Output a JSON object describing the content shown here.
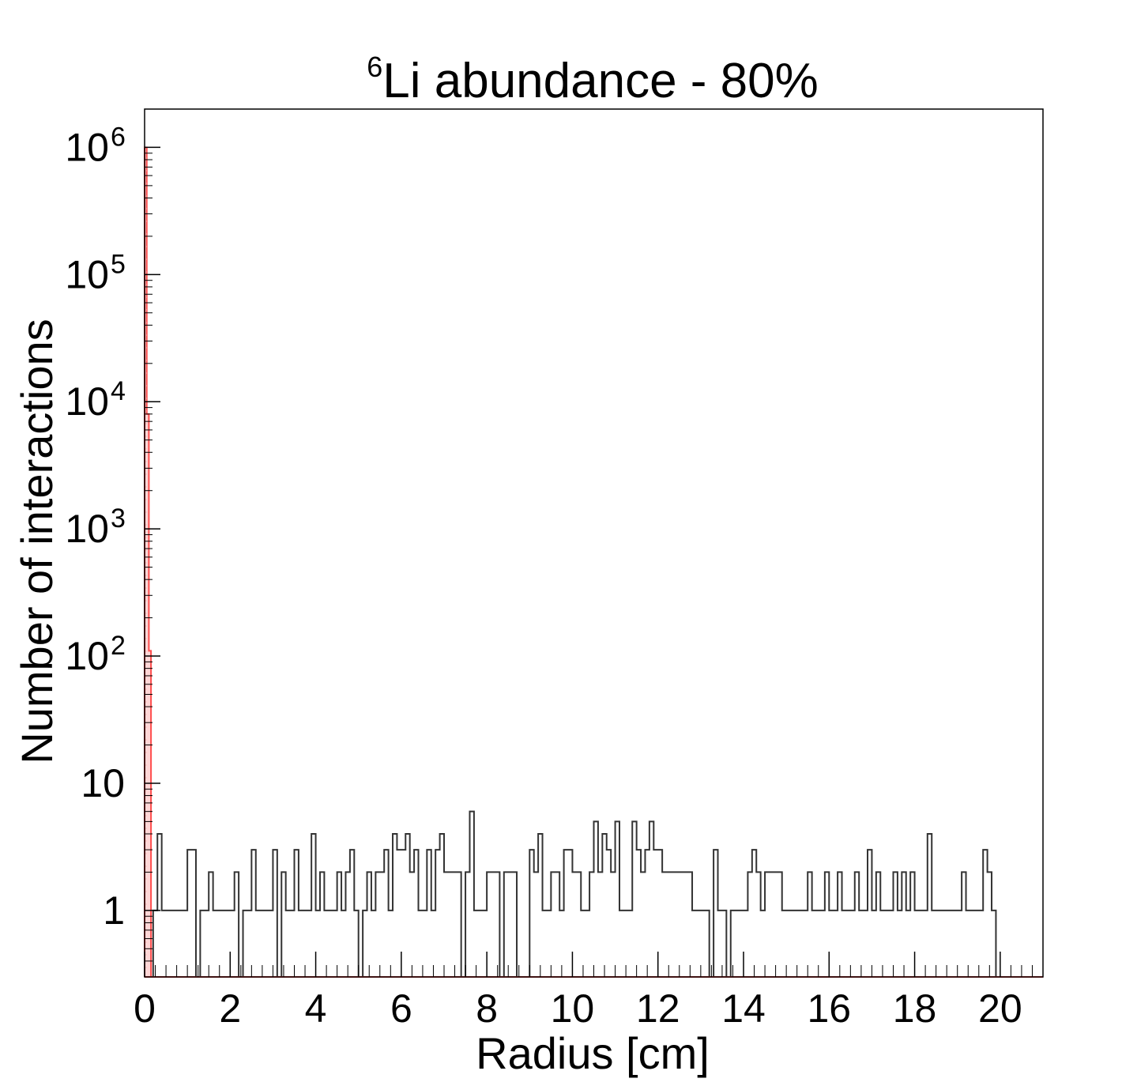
{
  "chart_data": {
    "type": "histogram",
    "title": {
      "superscript": "6",
      "text": "Li abundance - 80%"
    },
    "xlabel": "Radius [cm]",
    "ylabel": "Number of interactions",
    "xlim": [
      0,
      21
    ],
    "ylim": [
      0.3,
      2000000
    ],
    "y_scale": "log",
    "grid": false,
    "legend": "none",
    "x_ticks": [
      {
        "value": 0,
        "label": "0"
      },
      {
        "value": 2,
        "label": "2"
      },
      {
        "value": 4,
        "label": "4"
      },
      {
        "value": 6,
        "label": "6"
      },
      {
        "value": 8,
        "label": "8"
      },
      {
        "value": 10,
        "label": "10"
      },
      {
        "value": 12,
        "label": "12"
      },
      {
        "value": 14,
        "label": "14"
      },
      {
        "value": 16,
        "label": "16"
      },
      {
        "value": 18,
        "label": "18"
      },
      {
        "value": 20,
        "label": "20"
      }
    ],
    "y_ticks": [
      {
        "value": 1,
        "label": "1",
        "exp": ""
      },
      {
        "value": 10,
        "label": "10",
        "exp": ""
      },
      {
        "value": 100,
        "label": "10",
        "exp": "2"
      },
      {
        "value": 1000,
        "label": "10",
        "exp": "3"
      },
      {
        "value": 10000,
        "label": "10",
        "exp": "4"
      },
      {
        "value": 100000,
        "label": "10",
        "exp": "5"
      },
      {
        "value": 1000000,
        "label": "10",
        "exp": "6"
      }
    ],
    "colors": {
      "axis": "#000000",
      "black_series": "#333333",
      "red_series": "#ff4d4d",
      "red_fill": "#ffd6d6"
    },
    "series": [
      {
        "style": "red-filled",
        "bin_width": 0.05,
        "x_start": 0,
        "values": [
          1000000,
          8000,
          110,
          0.3,
          0.3,
          0.3,
          0.3,
          0.3,
          0.3,
          0.3,
          0.3,
          0.3,
          0.3,
          0.3,
          0.3,
          0.3,
          0.3,
          0.3,
          0.3,
          0.3,
          0.3,
          0.3,
          0.3,
          0.3,
          0.3,
          0.3,
          0.3,
          0.3,
          0.3,
          0.3,
          0.3,
          0.3,
          0.3,
          0.3,
          0.3,
          0.3,
          0.3,
          0.3,
          0.3,
          0.3,
          0.3,
          0.3,
          0.3,
          0.3,
          0.3,
          0.3,
          0.3,
          0.3,
          0.3,
          0.3,
          0.3,
          0.3,
          0.3,
          0.3,
          0.3,
          0.3,
          0.3,
          0.3,
          0.3,
          0.3,
          0.3,
          0.3,
          0.3,
          0.3,
          0.3,
          0.3,
          0.3,
          0.3,
          0.3,
          0.3,
          0.3,
          0.3,
          0.3,
          0.3,
          0.3,
          0.3,
          0.3,
          0.3,
          0.3,
          0.3,
          0.3,
          0.3,
          0.3,
          0.3,
          0.3,
          0.3,
          0.3,
          0.3,
          0.3,
          0.3,
          0.3,
          0.3,
          0.3,
          0.3,
          0.3,
          0.3,
          0.3,
          0.3,
          0.3,
          0.3,
          0.3,
          0.3,
          0.3,
          0.3,
          0.3,
          0.3,
          0.3,
          0.3,
          0.3,
          0.3,
          0.3,
          0.3,
          0.3,
          0.3,
          0.3,
          0.3,
          0.3,
          0.3,
          0.3,
          0.3,
          0.3,
          0.3,
          0.3,
          0.3,
          0.3,
          0.3,
          0.3,
          0.3,
          0.3,
          0.3,
          0.3,
          0.3,
          0.3,
          0.3,
          0.3,
          0.3,
          0.3,
          0.3,
          0.3,
          0.3,
          0.3,
          0.3,
          0.3,
          0.3,
          0.3,
          0.3,
          0.3,
          0.3,
          0.3,
          0.3,
          0.3,
          0.3,
          0.3,
          0.3,
          0.3,
          0.3,
          0.3,
          0.3,
          0.3,
          0.3,
          0.3,
          0.3,
          0.3,
          0.3,
          0.3,
          0.3,
          0.3,
          0.3,
          0.3,
          0.3,
          0.3,
          0.3,
          0.3,
          0.3,
          0.3,
          0.3,
          0.3,
          0.3,
          0.3,
          0.3,
          0.3,
          0.3,
          0.3,
          0.3,
          0.3,
          0.3,
          0.3,
          0.3,
          0.3,
          0.3,
          0.3,
          0.3,
          0.3,
          0.3,
          0.3,
          0.3,
          0.3,
          0.3,
          0.3,
          0.3,
          0.3,
          0.3,
          0.3,
          0.3,
          0.3,
          0.3,
          0.3,
          0.3,
          0.3,
          0.3,
          0.3,
          0.3,
          0.3,
          0.3,
          0.3,
          0.3,
          0.3,
          0.3,
          0.3,
          0.3,
          0.3,
          0.3,
          0.3,
          0.3,
          0.3,
          0.3,
          0.3,
          0.3,
          0.3,
          0.3,
          0.3,
          0.3,
          0.3,
          0.3,
          0.3,
          0.3,
          0.3,
          0.3,
          0.3,
          0.3,
          0.3,
          0.3,
          0.3,
          0.3,
          0.3,
          0.3,
          0.3,
          0.3,
          0.3,
          0.3,
          0.3,
          0.3,
          0.3,
          0.3,
          0.3,
          0.3,
          0.3,
          0.3,
          0.3,
          0.3,
          0.3,
          0.3,
          0.3,
          0.3,
          0.3,
          0.3,
          0.3,
          0.3,
          0.3,
          0.3,
          0.3,
          0.3,
          0.3,
          0.3,
          0.3,
          0.3,
          0.3,
          0.3,
          0.3,
          0.3,
          0.3,
          0.3,
          0.3,
          0.3,
          0.3,
          0.3,
          0.3,
          0.3,
          0.3,
          0.3,
          0.3,
          0.3,
          0.3,
          0.3,
          0.3,
          0.3,
          0.3,
          0.3,
          0.3,
          0.3,
          0.3,
          0.3,
          0.3,
          0.3,
          0.3,
          0.3,
          0.3,
          0.3,
          0.3,
          0.3,
          0.3,
          0.3,
          0.3,
          0.3,
          0.3,
          0.3,
          0.3,
          0.3,
          0.3,
          0.3,
          0.3,
          0.3,
          0.3,
          0.3,
          0.3,
          0.3,
          0.3,
          0.3,
          0.3,
          0.3,
          0.3,
          0.3,
          0.3,
          0.3,
          0.3,
          0.3,
          0.3,
          0.3,
          0.3,
          0.3,
          0.3,
          0.3,
          0.3,
          0.3,
          0.3,
          0.3,
          0.3,
          0.3,
          0.3,
          0.3,
          0.3,
          0.3,
          0.3,
          0.3,
          0.3,
          0.3,
          0.3,
          0.3,
          0.3,
          0.3,
          0.3,
          0.3,
          0.3,
          0.3,
          0.3,
          0.3,
          0.3,
          0.3,
          0.3,
          0.3,
          0.3,
          0.3,
          0.3,
          0.3,
          0.3,
          0.3,
          0.3,
          0.3,
          0.3,
          0.3,
          0.3,
          0.3,
          0.3,
          0.3,
          0.3,
          0.3,
          0.3,
          0.3,
          0.3,
          0.3,
          0.3,
          0.3,
          0.3,
          0.3,
          0.3,
          0.3,
          0.3,
          0.3,
          0.3,
          0.3,
          0.3
        ]
      },
      {
        "style": "black-outline",
        "bin_width": 0.1,
        "x_start": 0,
        "values": [
          0.3,
          0.3,
          1,
          4,
          1,
          1,
          1,
          1,
          1,
          1,
          3,
          3,
          0,
          1,
          1,
          2,
          1,
          1,
          1,
          1,
          1,
          2,
          0,
          1,
          1,
          3,
          1,
          1,
          1,
          1,
          3,
          0,
          2,
          1,
          1,
          3,
          1,
          1,
          1,
          4,
          1,
          2,
          1,
          1,
          1,
          2,
          1,
          2,
          3,
          1,
          0,
          1,
          2,
          1,
          2,
          2,
          3,
          1,
          4,
          3,
          3,
          4,
          2,
          3,
          1,
          1,
          3,
          1,
          3,
          4,
          2,
          2,
          2,
          2,
          0,
          2,
          6,
          1,
          1,
          1,
          2,
          2,
          2,
          0,
          2,
          2,
          2,
          0,
          0,
          0,
          3,
          2,
          4,
          1,
          1,
          2,
          2,
          1,
          3,
          3,
          2,
          2,
          1,
          1,
          2,
          5,
          2,
          4,
          3,
          2,
          5,
          1,
          1,
          1,
          5,
          3,
          2,
          3,
          5,
          3,
          3,
          2,
          2,
          2,
          2,
          2,
          2,
          2,
          1,
          1,
          1,
          1,
          0,
          3,
          1,
          1,
          0,
          1,
          1,
          1,
          1,
          2,
          3,
          2,
          1,
          2,
          2,
          2,
          2,
          1,
          1,
          1,
          1,
          1,
          1,
          2,
          1,
          1,
          1,
          2,
          1,
          1,
          2,
          1,
          1,
          1,
          2,
          1,
          1,
          3,
          1,
          2,
          1,
          1,
          1,
          2,
          1,
          2,
          1,
          2,
          1,
          1,
          1,
          4,
          1,
          1,
          1,
          1,
          1,
          1,
          1,
          2,
          1,
          1,
          1,
          1,
          3,
          2,
          1,
          0.3
        ]
      }
    ]
  }
}
